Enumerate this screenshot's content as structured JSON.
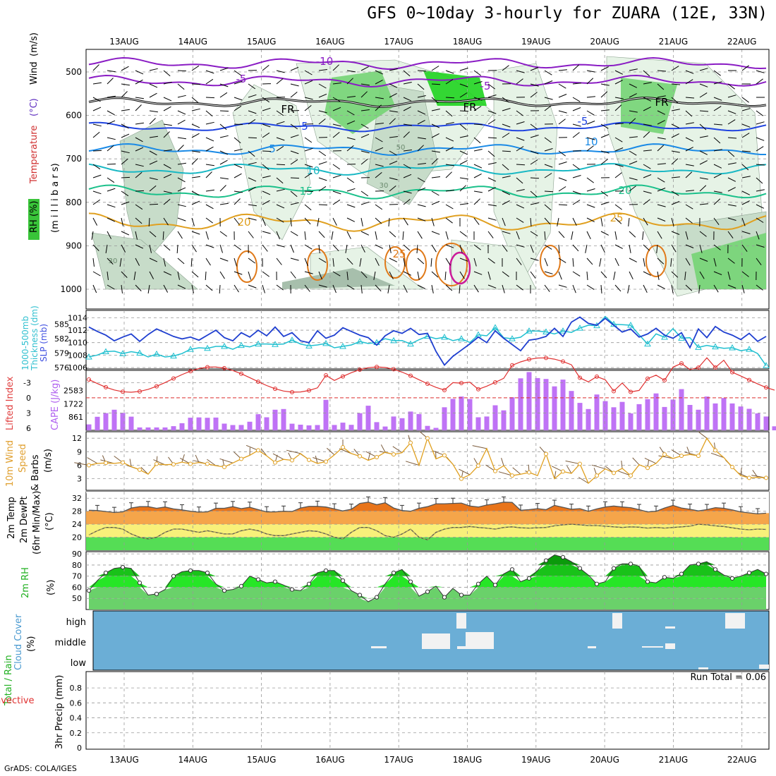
{
  "header": {
    "title": "GFS 0~10day 3-hourly for ZUARA (12E, 33N)",
    "footer": "GrADS: COLA/IGES"
  },
  "chart_data": [
    {
      "type": "heatmap",
      "panel": "upper-air",
      "dates": [
        "13AUG",
        "14AUG",
        "15AUG",
        "16AUG",
        "17AUG",
        "18AUG",
        "19AUG",
        "20AUG",
        "21AUG",
        "22AUG"
      ],
      "y_ticks": [
        "500",
        "600",
        "700",
        "800",
        "900",
        "1000"
      ],
      "ylabel_parts": [
        "RH (%)",
        "Temperature",
        "(°C)",
        "Wind",
        "(m/s)",
        "(m i l l i b a r s)"
      ],
      "temp_labels": [
        "-10",
        "-5",
        "-5",
        "FR",
        "FR",
        "FR",
        "-5",
        "5",
        "5",
        "10",
        "10",
        "15",
        "20",
        "20",
        "25",
        "25"
      ],
      "rh_labels": [
        "50",
        "30",
        "30"
      ],
      "colors": {
        "rh_light": "#e6f3e6",
        "rh_mid": "#c7dcc9",
        "rh_dark": "#a7bfac",
        "rh_green": "#74d474",
        "rh_bright": "#1fd41f",
        "purple": "#8a1cc4",
        "blue1": "#1f43e0",
        "blue2": "#1a8ae6",
        "cyan": "#19b8c4",
        "teal": "#1ac08a",
        "orange": "#e0a020",
        "darkorange": "#e07a1a",
        "magenta": "#cc1a9a"
      }
    },
    {
      "type": "line",
      "panel": "slp-thickness",
      "ylabel_parts": [
        "1000-500mb",
        "Thickness (dm)",
        "SLP (mb)"
      ],
      "left_ticks": [
        "585",
        "582",
        "579",
        "576"
      ],
      "right_ticks": [
        "1014",
        "1012",
        "1010",
        "1008",
        "1006"
      ],
      "series": [
        {
          "name": "SLP (mb)",
          "color": "#1f3fd0",
          "values": [
            1012.5,
            1011.8,
            1011.2,
            1010.3,
            1010.9,
            1011.4,
            1010.2,
            1011.3,
            1012.2,
            1011.6,
            1011.0,
            1010.6,
            1010.9,
            1010.4,
            1011.2,
            1012.0,
            1010.8,
            1010.3,
            1011.6,
            1010.9,
            1012.0,
            1011.1,
            1012.5,
            1011.0,
            1011.6,
            1010.3,
            1010.0,
            1011.9,
            1010.7,
            1011.2,
            1012.4,
            1011.8,
            1011.2,
            1010.8,
            1009.6,
            1011.1,
            1011.9,
            1011.5,
            1012.3,
            1011.3,
            1011.5,
            1008.6,
            1006.4,
            1007.8,
            1008.8,
            1009.8,
            1010.9,
            1010.0,
            1011.9,
            1010.7,
            1009.7,
            1008.7,
            1010.4,
            1010.6,
            1011.0,
            1012.3,
            1011.0,
            1013.3,
            1014.1,
            1013.1,
            1012.8,
            1013.9,
            1012.8,
            1011.7,
            1012.2,
            1010.9,
            1011.4,
            1012.3,
            1011.2,
            1010.7,
            1011.6,
            1009.2,
            1012.2,
            1010.8,
            1012.6,
            1011.7,
            1011.2,
            1010.5,
            1011.5,
            1010.2,
            1011.0
          ]
        },
        {
          "name": "Thickness (dm)",
          "color": "#20c0d0",
          "values": [
            578.2,
            578.6,
            579.3,
            579.4,
            578.9,
            579.3,
            579.0,
            578.2,
            578.8,
            578.2,
            578.4,
            578.9,
            579.8,
            580.1,
            580.0,
            580.4,
            580.4,
            579.8,
            580.6,
            580.3,
            580.9,
            580.9,
            580.8,
            580.9,
            581.7,
            580.9,
            580.5,
            580.7,
            581.0,
            580.1,
            580.4,
            580.7,
            581.4,
            581.0,
            581.2,
            582.0,
            581.6,
            581.6,
            580.9,
            581.8,
            582.5,
            582.0,
            582.3,
            581.6,
            582.0,
            581.2,
            582.8,
            582.6,
            584.3,
            582.2,
            582.0,
            582.3,
            583.6,
            583.6,
            583.4,
            583.0,
            583.6,
            583.3,
            584.2,
            584.8,
            584.7,
            586.6,
            585.0,
            584.9,
            584.8,
            582.8,
            580.9,
            583.0,
            582.3,
            584.1,
            582.1,
            582.2,
            580.2,
            580.6,
            580.3,
            580.0,
            580.1,
            579.5,
            579.8,
            578.9,
            576.4
          ]
        }
      ]
    },
    {
      "type": "bar",
      "panel": "cape-lifted-index",
      "ylabel_parts": [
        "Lifted Index",
        "CAPE (J/kg)"
      ],
      "left_ticks": [
        "-3",
        "0",
        "3",
        "6"
      ],
      "right_ticks": [
        "2583",
        "1722",
        "861"
      ],
      "bar_color": "#bf73f5",
      "line_color": "#e03030",
      "cape_values": [
        385,
        880,
        1120,
        1340,
        1135,
        890,
        190,
        190,
        190,
        190,
        270,
        465,
        820,
        840,
        815,
        830,
        435,
        345,
        350,
        560,
        1050,
        850,
        1340,
        1385,
        430,
        365,
        320,
        345,
        1980,
        350,
        500,
        360,
        1115,
        1600,
        530,
        250,
        900,
        790,
        1220,
        1060,
        290,
        160,
        1500,
        2045,
        2200,
        2035,
        850,
        900,
        1630,
        1300,
        2150,
        3380,
        3790,
        3400,
        3340,
        2860,
        3300,
        2560,
        1785,
        1385,
        2330,
        1900,
        1500,
        1850,
        1100,
        1700,
        2025,
        2400,
        1520,
        2000,
        2680,
        1650,
        1340,
        2200,
        1750,
        2100,
        1750,
        1550,
        1400,
        1100,
        900,
        260
      ]
    },
    {
      "type": "line",
      "panel": "10m-wind",
      "ylabel_parts": [
        "10m Wind",
        "Speed",
        "& Barbs",
        "(m/s)"
      ],
      "left_ticks": [
        "12",
        "9",
        "6",
        "3"
      ],
      "series": [
        {
          "name": "10m Wind Speed",
          "color": "#e0a020",
          "values": [
            6.0,
            6.4,
            6.5,
            6.4,
            6.6,
            5.7,
            5.0,
            4.0,
            6.3,
            6.1,
            6.2,
            6.7,
            6.3,
            6.6,
            6.3,
            5.9,
            5.6,
            6.5,
            7.4,
            8.2,
            9.3,
            8.1,
            6.6,
            7.3,
            7.1,
            8.6,
            7.2,
            6.4,
            6.8,
            8.3,
            10.0,
            8.6,
            8.0,
            7.1,
            7.8,
            8.9,
            8.4,
            8.8,
            11.0,
            6.0,
            12.0,
            7.4,
            8.2,
            6.2,
            3.0,
            3.9,
            5.9,
            9.7,
            4.7,
            5.9,
            3.7,
            4.0,
            4.4,
            3.7,
            8.5,
            3.0,
            4.6,
            4.2,
            6.3,
            2.0,
            3.7,
            5.2,
            4.3,
            5.3,
            3.7,
            6.1,
            5.4,
            6.4,
            8.4,
            7.5,
            8.1,
            8.4,
            8.1,
            12.0,
            9.3,
            7.7,
            5.6,
            3.7,
            3.2,
            3.3,
            3.2
          ]
        }
      ]
    },
    {
      "type": "area",
      "panel": "2m-temp",
      "ylabel_parts": [
        "2m Temp",
        "2m DewPt",
        "(6hr Min/Max)",
        "(°C)"
      ],
      "left_ticks": [
        "32",
        "28",
        "24",
        "20"
      ],
      "fill_colors": [
        "#e8741a",
        "#f5a54a",
        "#f8f07a",
        "#55dd55"
      ],
      "series": [
        {
          "name": "2m Temp",
          "values": [
            28.3,
            28.2,
            27.9,
            27.6,
            27.8,
            29.0,
            29.4,
            29.4,
            28.9,
            29.3,
            28.7,
            28.4,
            28.0,
            27.7,
            27.8,
            28.9,
            28.9,
            29.4,
            28.8,
            29.2,
            28.5,
            27.8,
            27.8,
            28.0,
            27.9,
            29.0,
            29.5,
            29.5,
            29.3,
            28.7,
            28.1,
            28.6,
            30.4,
            30.8,
            30.0,
            30.6,
            29.0,
            28.2,
            28.0,
            28.9,
            29.4,
            30.3,
            30.3,
            30.4,
            30.5,
            29.6,
            29.3,
            29.9,
            30.3,
            30.8,
            30.7,
            28.3,
            28.5,
            28.8,
            28.5,
            29.8,
            29.2,
            28.6,
            28.8,
            28.0,
            28.7,
            29.3,
            29.6,
            29.3,
            29.1,
            28.5,
            27.8,
            28.0,
            29.0,
            29.8,
            29.0,
            28.6,
            28.1,
            28.5,
            29.1,
            28.9,
            28.4,
            27.8,
            27.5,
            27.2,
            27.4
          ]
        },
        {
          "name": "2m DewPt",
          "values": [
            20.7,
            22.0,
            23.0,
            23.0,
            22.5,
            21.0,
            20.0,
            19.5,
            20.0,
            21.5,
            22.5,
            22.5,
            22.0,
            21.5,
            22.0,
            21.5,
            21.0,
            21.0,
            22.0,
            22.5,
            22.0,
            21.0,
            20.5,
            20.5,
            21.0,
            21.5,
            22.0,
            21.8,
            21.0,
            20.0,
            19.5,
            21.5,
            23.0,
            23.0,
            22.0,
            20.5,
            20.0,
            21.0,
            22.5,
            20.0,
            19.2,
            21.5,
            22.5,
            23.0,
            23.0,
            23.3,
            23.0,
            22.8,
            22.5,
            23.0,
            23.2,
            22.9,
            22.8,
            22.9,
            23.0,
            23.5,
            23.8,
            24.0,
            23.8,
            23.6,
            23.6,
            23.4,
            23.2,
            23.0,
            23.2,
            23.1,
            22.8,
            23.0,
            22.8,
            23.0,
            23.2,
            23.4,
            24.0,
            23.8,
            23.5,
            23.3,
            22.9,
            22.5,
            22.3,
            22.5,
            22.4
          ]
        }
      ]
    },
    {
      "type": "area",
      "panel": "2m-rh",
      "ylabel_parts": [
        "2m RH",
        "(%)"
      ],
      "left_ticks": [
        "90",
        "80",
        "70",
        "60",
        "50"
      ],
      "fill_colors": [
        "#0b9a0b",
        "#19c219",
        "#26e626",
        "#6ad16a"
      ],
      "series": [
        {
          "name": "2m RH",
          "values": [
            57,
            66,
            73,
            77,
            78,
            77,
            64,
            53,
            54,
            58,
            70,
            74,
            75,
            75,
            73,
            63,
            57,
            58,
            61,
            70,
            67,
            64,
            65,
            62,
            58,
            57,
            63,
            73,
            75,
            75,
            66,
            57,
            53,
            47,
            51,
            63,
            73,
            76,
            65,
            52,
            56,
            61,
            51,
            59,
            53,
            53,
            63,
            70,
            62,
            72,
            76,
            65,
            68,
            75,
            84,
            89,
            87,
            83,
            77,
            71,
            63,
            65,
            77,
            81,
            81,
            79,
            65,
            64,
            69,
            68,
            72,
            80,
            81,
            83,
            76,
            71,
            68,
            70,
            73,
            76,
            72
          ]
        }
      ]
    },
    {
      "type": "heatmap",
      "panel": "cloud-cover",
      "ylabel_parts": [
        "Cloud Cover",
        "(%)"
      ],
      "levels": [
        "high",
        "middle",
        "low"
      ],
      "background": "#6baed6",
      "clear_color": "#f2f2f2"
    },
    {
      "type": "bar",
      "panel": "precip",
      "ylabel_parts": [
        "Total / Rain",
        "Convective",
        "3hr Precip (mm)"
      ],
      "left_ticks": [
        "0.8",
        "0.6",
        "0.4",
        "0.2",
        "0"
      ],
      "run_total": "Run Total = 0.06"
    }
  ]
}
